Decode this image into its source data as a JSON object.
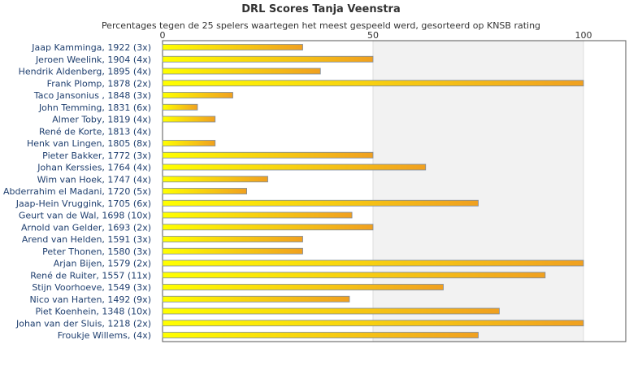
{
  "chart_data": {
    "type": "bar",
    "orientation": "horizontal",
    "title": "DRL Scores Tanja Veenstra",
    "subtitle": "Percentages tegen de 25 spelers waartegen het meest gespeeld werd, gesorteerd op KNSB rating",
    "xlabel": "",
    "ylabel": "",
    "xlim": [
      0,
      110
    ],
    "x_ticks": [
      "0",
      "50",
      "100"
    ],
    "grid": true,
    "bar_gradient": [
      "#ffff00",
      "#f0a020"
    ],
    "bar_stroke": "#7a8aa0",
    "categories": [
      "Jaap Kamminga, 1922 (3x)",
      "Jeroen Weelink, 1904 (4x)",
      "Hendrik Aldenberg, 1895 (4x)",
      "Frank Plomp, 1878 (2x)",
      "Taco Jansonius , 1848 (3x)",
      "John Temming, 1831 (6x)",
      "Almer Toby, 1819 (4x)",
      "René de Korte, 1813 (4x)",
      "Henk van Lingen, 1805 (8x)",
      "Pieter Bakker, 1772 (3x)",
      "Johan Kerssies, 1764 (4x)",
      "Wim van Hoek, 1747 (4x)",
      "Abderrahim el Madani, 1720 (5x)",
      "Jaap-Hein Vruggink, 1705 (6x)",
      "Geurt van de Wal, 1698 (10x)",
      "Arnold van Gelder, 1693 (2x)",
      "Arend van Helden, 1591 (3x)",
      "Peter Thonen, 1580 (3x)",
      "Arjan Bijen, 1579 (2x)",
      "René de Ruiter, 1557 (11x)",
      "Stijn Voorhoeve, 1549 (3x)",
      "Nico van Harten, 1492 (9x)",
      "Piet Koenhein, 1348 (10x)",
      "Johan van der Sluis, 1218 (2x)",
      "Froukje Willems,  (4x)"
    ],
    "values": [
      33.3,
      50,
      37.5,
      100,
      16.7,
      8.3,
      12.5,
      0,
      12.5,
      50,
      62.5,
      25,
      20,
      75,
      45,
      50,
      33.3,
      33.3,
      100,
      90.9,
      66.7,
      44.4,
      80,
      100,
      75
    ]
  }
}
